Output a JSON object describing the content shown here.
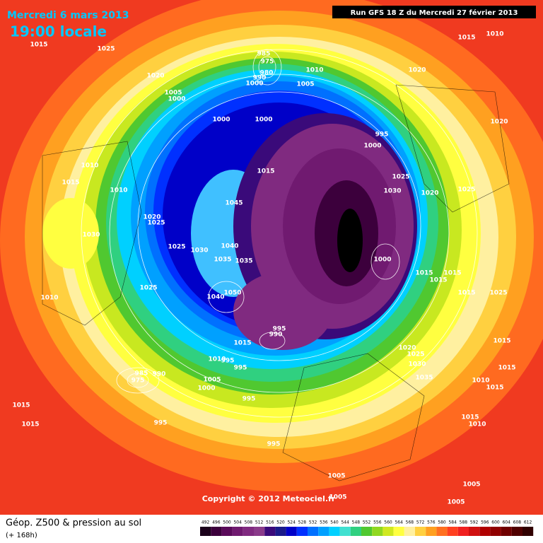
{
  "header": {
    "date": "Mercredi 6 mars 2013",
    "time": "19:00 locale",
    "run": "Run GFS 18 Z du Mercredi 27 février 2013"
  },
  "copyright": "Copyright © 2012 Meteociel.fr",
  "footer": {
    "title": "Géop. Z500 & pression au sol",
    "subtitle": "(+ 168h)"
  },
  "colorbar": {
    "values": [
      492,
      496,
      500,
      504,
      508,
      512,
      516,
      520,
      524,
      528,
      532,
      536,
      540,
      544,
      548,
      552,
      556,
      560,
      564,
      568,
      572,
      576,
      580,
      584,
      588,
      592,
      596,
      600,
      604,
      608,
      612
    ],
    "colors": [
      "#1a001a",
      "#3c003c",
      "#5a0a5a",
      "#701a70",
      "#802a80",
      "#8a3a8a",
      "#3a0a7a",
      "#1a1a8a",
      "#0000c8",
      "#0030ff",
      "#0070ff",
      "#00a0ff",
      "#00d0ff",
      "#40e0d0",
      "#30d080",
      "#50c830",
      "#90d820",
      "#d0e820",
      "#ffff40",
      "#fff0a0",
      "#ffd040",
      "#ffa020",
      "#ff7020",
      "#ff4020",
      "#f02020",
      "#d01010",
      "#b00000",
      "#900000",
      "#700000",
      "#500000",
      "#300000"
    ]
  },
  "pressure_labels": [
    "1015",
    "1025",
    "1010",
    "1015",
    "985",
    "975",
    "980",
    "990",
    "1000",
    "1010",
    "1020",
    "1005",
    "1020",
    "1005",
    "1000",
    "1000",
    "1000",
    "995",
    "1020",
    "1000",
    "1010",
    "1015",
    "1025",
    "1015",
    "1010",
    "1030",
    "1020",
    "1025",
    "1045",
    "1020",
    "1025",
    "1030",
    "1025",
    "1030",
    "1040",
    "1035",
    "1035",
    "1000",
    "1015",
    "1015",
    "1015",
    "1025",
    "1050",
    "1015",
    "1025",
    "1010",
    "1040",
    "995",
    "990",
    "1015",
    "1020",
    "1025",
    "1010",
    "995",
    "1030",
    "995",
    "1015",
    "1015",
    "975",
    "985",
    "990",
    "1005",
    "1035",
    "1010",
    "1000",
    "1015",
    "1015",
    "995",
    "1015",
    "1015",
    "995",
    "1010",
    "995",
    "1005",
    "1005",
    "1005",
    "1010",
    "1005"
  ]
}
